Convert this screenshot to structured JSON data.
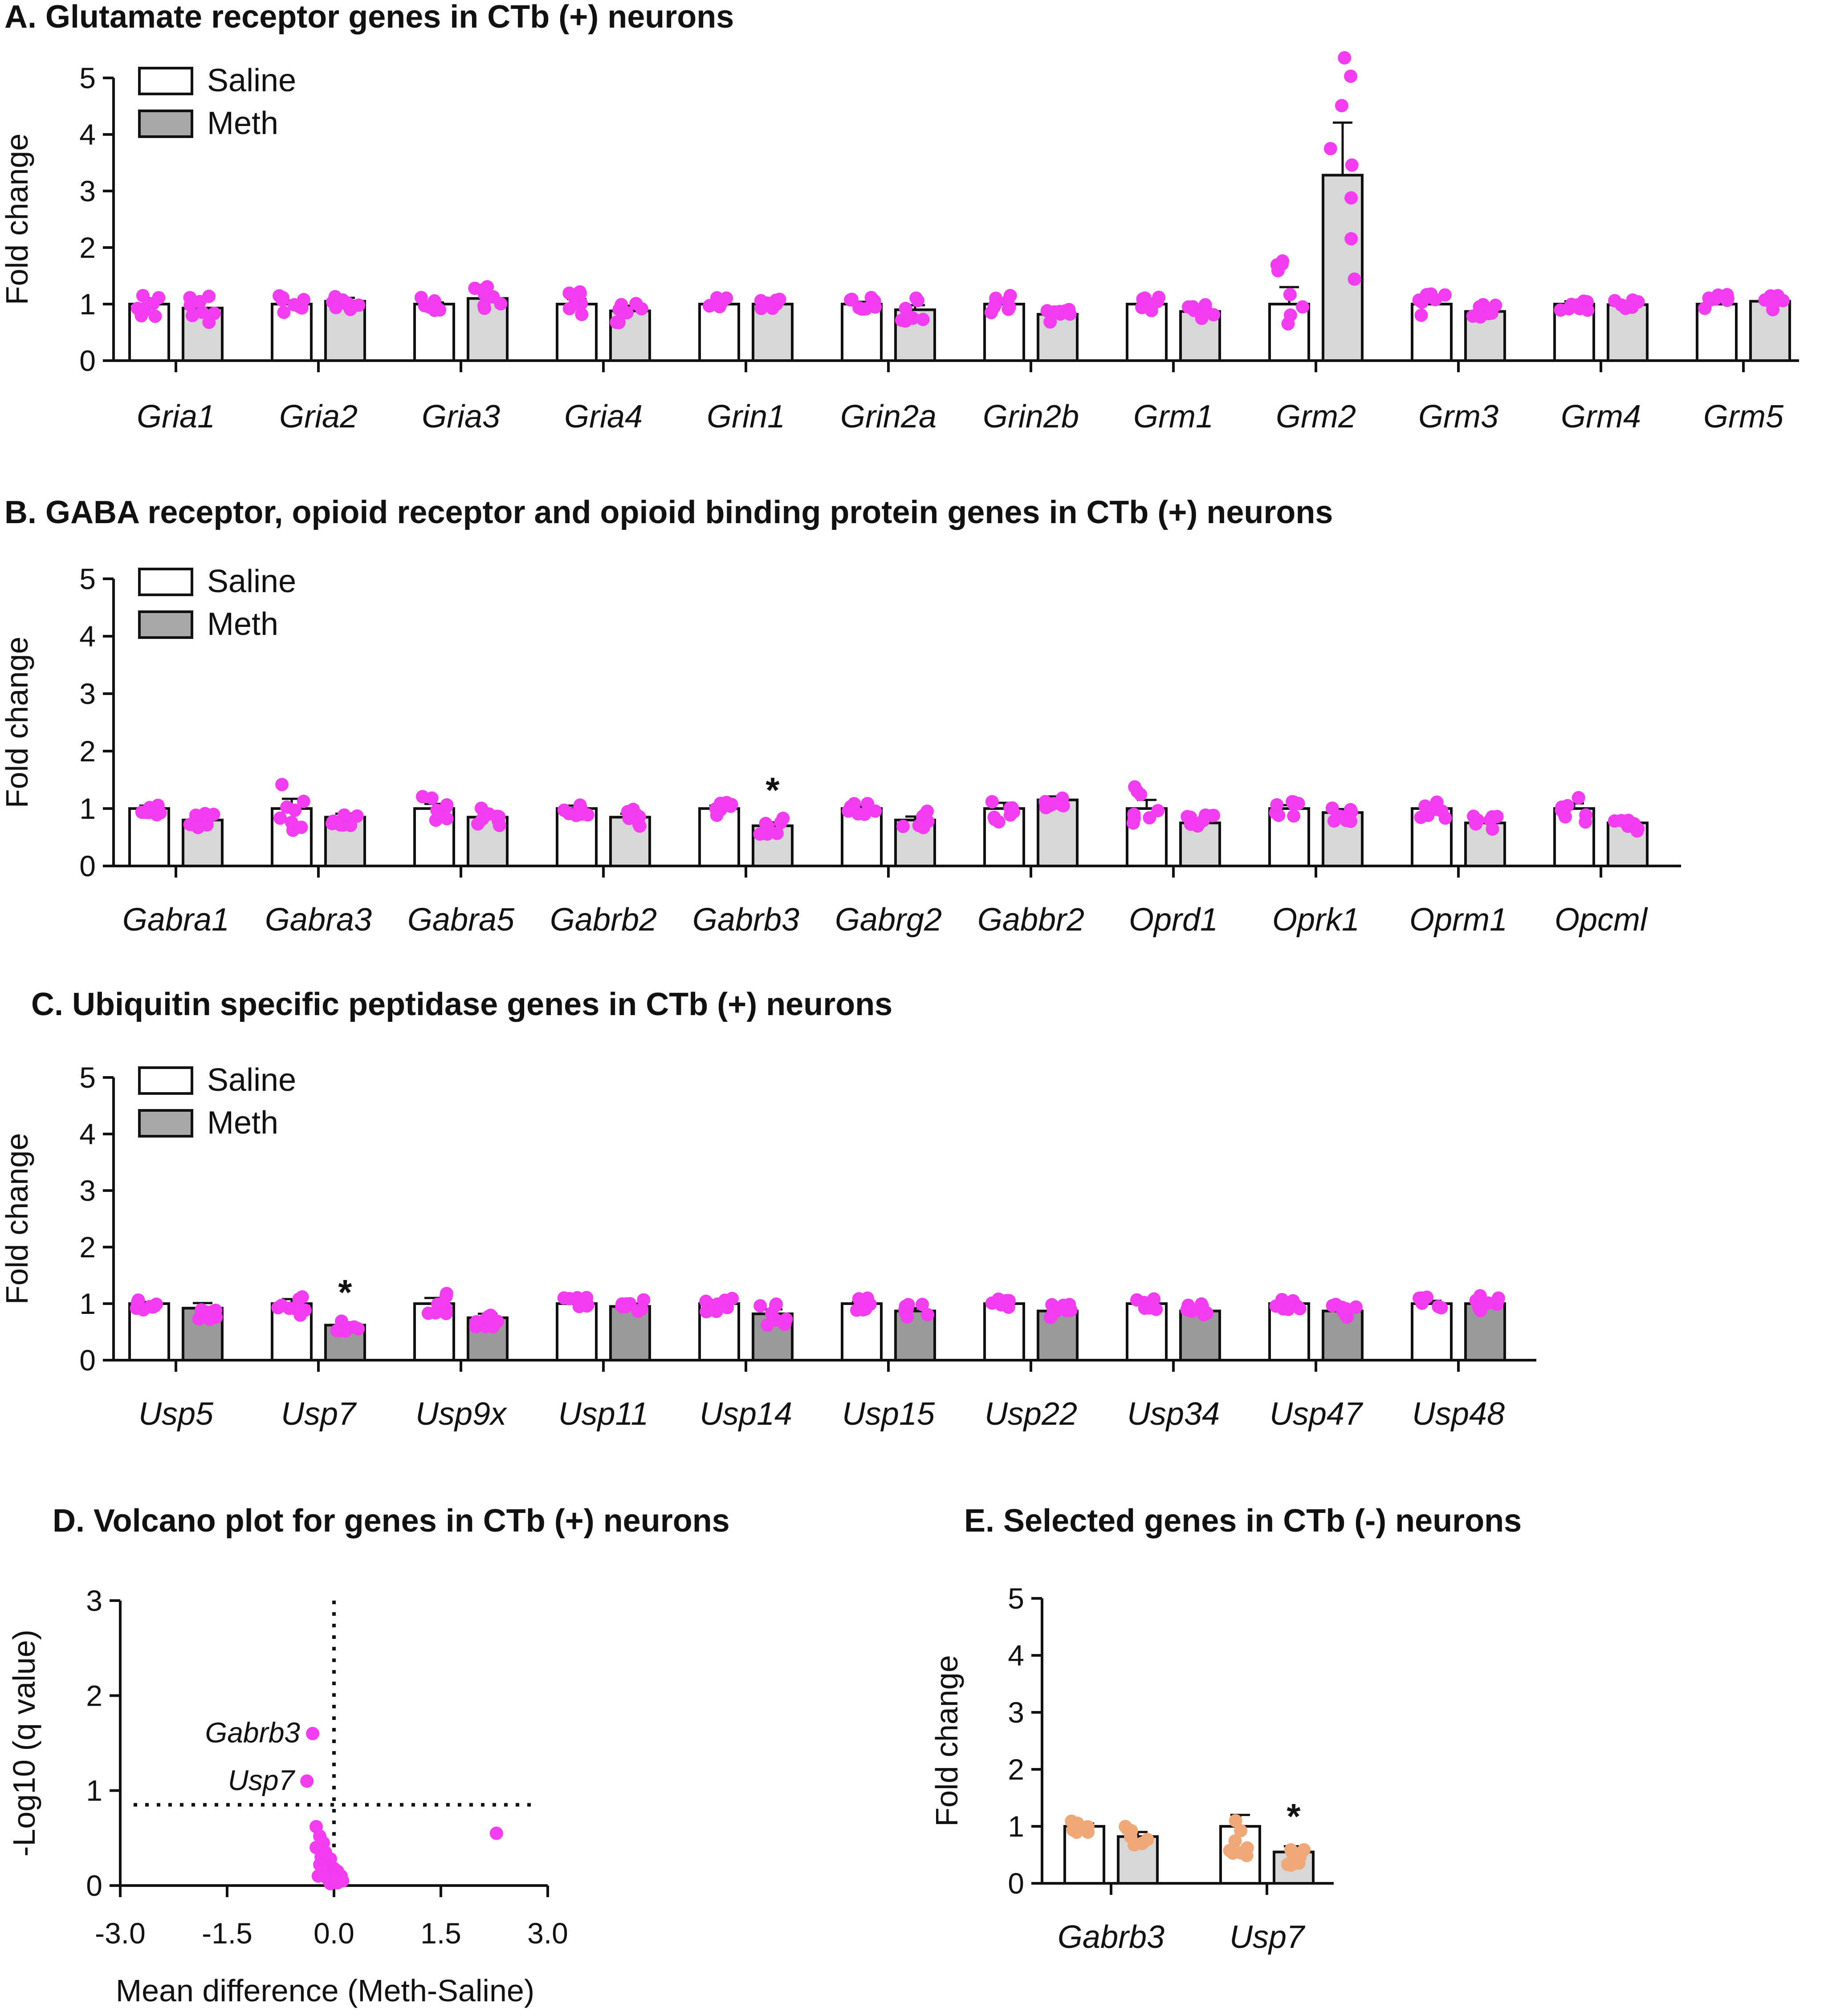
{
  "chart_data": [
    {
      "id": "A",
      "type": "bar",
      "title": "A. Glutamate receptor genes in CTb (+)  neurons",
      "ylabel": "Fold change",
      "xlabel": "",
      "ylim": [
        0,
        5
      ],
      "yticks": [
        "0",
        "1",
        "2",
        "3",
        "4",
        "5"
      ],
      "legend": [
        "Saline",
        "Meth"
      ],
      "categories": [
        "Gria1",
        "Gria2",
        "Gria3",
        "Gria4",
        "Grin1",
        "Grin2a",
        "Grin2b",
        "Grm1",
        "Grm2",
        "Grm3",
        "Grm4",
        "Grm5"
      ],
      "series": [
        {
          "name": "Saline",
          "values": [
            1.0,
            1.0,
            1.0,
            1.0,
            1.0,
            1.0,
            1.0,
            1.0,
            1.0,
            1.0,
            1.0,
            1.0
          ],
          "sem": [
            0.1,
            0.06,
            0.03,
            0.09,
            0.05,
            0.04,
            0.06,
            0.04,
            0.3,
            0.08,
            0.05,
            0.07
          ]
        },
        {
          "name": "Meth",
          "values": [
            0.93,
            1.05,
            1.1,
            0.88,
            1.0,
            0.9,
            0.82,
            0.87,
            3.28,
            0.87,
            0.99,
            1.05
          ],
          "sem": [
            0.13,
            0.06,
            0.1,
            0.09,
            0.06,
            0.08,
            0.06,
            0.05,
            0.93,
            0.06,
            0.03,
            0.06
          ]
        }
      ],
      "significant": []
    },
    {
      "id": "B",
      "type": "bar",
      "title": "B. GABA receptor, opioid receptor and opioid binding protein genes in CTb (+)  neurons",
      "ylabel": "Fold change",
      "xlabel": "",
      "ylim": [
        0,
        5
      ],
      "yticks": [
        "0",
        "1",
        "2",
        "3",
        "4",
        "5"
      ],
      "legend": [
        "Saline",
        "Meth"
      ],
      "categories": [
        "Gabra1",
        "Gabra3",
        "Gabra5",
        "Gabrb2",
        "Gabrb3",
        "Gabrg2",
        "Gabbr2",
        "Oprd1",
        "Oprk1",
        "Oprm1",
        "Opcml"
      ],
      "series": [
        {
          "name": "Saline",
          "values": [
            1.0,
            1.0,
            1.0,
            1.0,
            1.0,
            1.0,
            1.0,
            1.0,
            1.0,
            1.0,
            1.0
          ],
          "sem": [
            0.05,
            0.17,
            0.08,
            0.05,
            0.05,
            0.04,
            0.1,
            0.15,
            0.06,
            0.07,
            0.09
          ]
        },
        {
          "name": "Meth",
          "values": [
            0.8,
            0.85,
            0.85,
            0.85,
            0.7,
            0.8,
            1.15,
            0.75,
            0.93,
            0.75,
            0.75
          ],
          " sem": [
            0.1,
            0.2,
            0.17,
            0.08,
            0.05,
            0.13,
            0.15,
            0.13,
            0.1,
            0.06,
            0.07
          ]
        }
      ],
      "significant": [
        "Gabrb3"
      ],
      "significance_mark": "*"
    },
    {
      "id": "C",
      "type": "bar",
      "title": "C. Ubiquitin specific peptidase genes in CTb (+) neurons",
      "ylabel": "Fold change",
      "xlabel": "",
      "ylim": [
        0,
        5
      ],
      "yticks": [
        "0",
        "1",
        "2",
        "3",
        "4",
        "5"
      ],
      "legend": [
        "Saline",
        "Meth"
      ],
      "categories": [
        "Usp5",
        "Usp7",
        "Usp9x",
        "Usp11",
        "Usp14",
        "Usp15",
        "Usp22",
        "Usp34",
        "Usp47",
        "Usp48"
      ],
      "series": [
        {
          "name": "Saline",
          "values": [
            1.0,
            1.0,
            1.0,
            1.0,
            1.0,
            1.0,
            1.0,
            1.0,
            1.0,
            1.0
          ],
          "sem": [
            0.03,
            0.08,
            0.1,
            0.04,
            0.06,
            0.03,
            0.04,
            0.04,
            0.02,
            0.05
          ]
        },
        {
          "name": "Meth",
          "values": [
            0.92,
            0.62,
            0.75,
            0.95,
            0.82,
            0.87,
            0.87,
            0.87,
            0.87,
            1.0
          ],
          "sem": [
            0.09,
            0.05,
            0.07,
            0.05,
            0.08,
            0.05,
            0.04,
            0.05,
            0.04,
            0.06
          ]
        }
      ],
      "significant": [
        "Usp7"
      ],
      "significance_mark": "*"
    },
    {
      "id": "D",
      "type": "scatter",
      "title": "D. Volcano plot for genes in CTb (+) neurons",
      "xlabel": "Mean difference (Meth-Saline)",
      "ylabel": "-Log10 (q value)",
      "xlim": [
        -3.0,
        3.0
      ],
      "ylim": [
        0,
        3
      ],
      "xticks": [
        "-3.0",
        "-1.5",
        "0.0",
        "1.5",
        "3.0"
      ],
      "yticks": [
        "0",
        "1",
        "2",
        "3"
      ],
      "threshold_y": 0.85,
      "threshold_x": 0,
      "labeled_points": [
        {
          "label": "Gabrb3",
          "x": -0.3,
          "y": 1.6
        },
        {
          "label": "Usp7",
          "x": -0.38,
          "y": 1.1
        }
      ],
      "points": [
        {
          "x": -0.3,
          "y": 1.6
        },
        {
          "x": -0.38,
          "y": 1.1
        },
        {
          "x": 2.28,
          "y": 0.55
        },
        {
          "x": -0.25,
          "y": 0.62
        },
        {
          "x": -0.2,
          "y": 0.52
        },
        {
          "x": -0.15,
          "y": 0.45
        },
        {
          "x": -0.25,
          "y": 0.4
        },
        {
          "x": -0.12,
          "y": 0.35
        },
        {
          "x": -0.18,
          "y": 0.3
        },
        {
          "x": -0.05,
          "y": 0.28
        },
        {
          "x": -0.2,
          "y": 0.22
        },
        {
          "x": -0.1,
          "y": 0.2
        },
        {
          "x": 0.0,
          "y": 0.18
        },
        {
          "x": -0.15,
          "y": 0.15
        },
        {
          "x": -0.05,
          "y": 0.12
        },
        {
          "x": 0.05,
          "y": 0.15
        },
        {
          "x": -0.1,
          "y": 0.08
        },
        {
          "x": 0.1,
          "y": 0.1
        },
        {
          "x": 0.0,
          "y": 0.05
        },
        {
          "x": -0.05,
          "y": 0.02
        },
        {
          "x": 0.05,
          "y": 0.03
        },
        {
          "x": 0.02,
          "y": 0.08
        },
        {
          "x": -0.22,
          "y": 0.1
        },
        {
          "x": 0.12,
          "y": 0.05
        }
      ]
    },
    {
      "id": "E",
      "type": "bar",
      "title": "E. Selected genes in CTb (-) neurons",
      "ylabel": "Fold change",
      "xlabel": "",
      "ylim": [
        0,
        5
      ],
      "yticks": [
        "0",
        "1",
        "2",
        "3",
        "4",
        "5"
      ],
      "categories": [
        "Gabrb3",
        "Usp7"
      ],
      "series": [
        {
          "name": "Saline",
          "values": [
            1.0,
            1.0
          ],
          "sem": [
            0.05,
            0.2
          ]
        },
        {
          "name": "Meth",
          "values": [
            0.82,
            0.55
          ],
          "sem": [
            0.08,
            0.1
          ]
        }
      ],
      "significant": [
        "Usp7"
      ],
      "significance_mark": "*"
    }
  ]
}
